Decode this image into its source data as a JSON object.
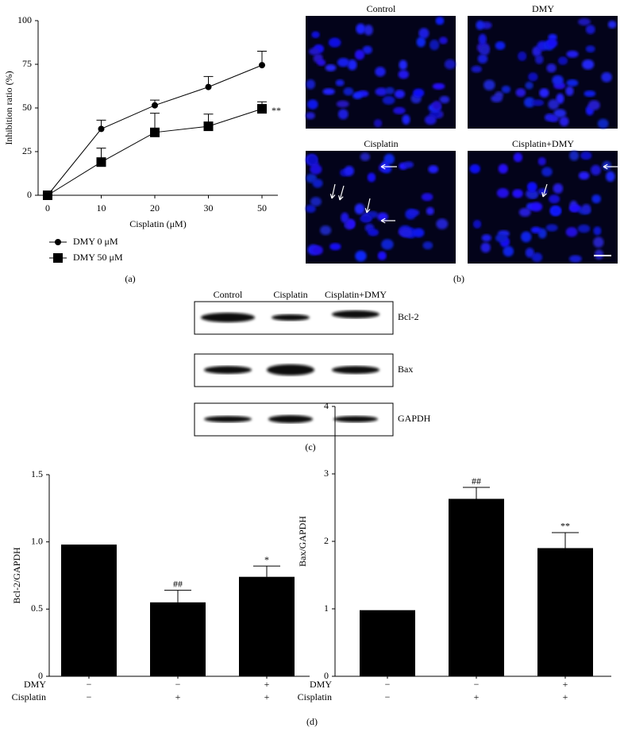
{
  "chart_data": [
    {
      "type": "line",
      "panel_label": "(a)",
      "x_label": "Cisplatin (μM)",
      "y_label": "Inhibition ratio (%)",
      "categories": [
        "0",
        "10",
        "20",
        "30",
        "50"
      ],
      "ylim": [
        0,
        100
      ],
      "yticks": [
        0,
        25,
        50,
        75,
        100
      ],
      "series": [
        {
          "name": "DMY 0 μM",
          "color": "#000000",
          "marker": "circle",
          "values": [
            0,
            38,
            51.5,
            62,
            74.5
          ],
          "errors": [
            null,
            5,
            3,
            6,
            8
          ],
          "value_annotations": [
            null,
            null,
            null,
            null,
            null
          ]
        },
        {
          "name": "DMY 50 μM",
          "color": "#000000",
          "marker": "square",
          "values": [
            0,
            19,
            36,
            39.5,
            49.5
          ],
          "errors": [
            null,
            8,
            11,
            7,
            4
          ],
          "value_annotations": [
            null,
            null,
            null,
            null,
            "**"
          ]
        }
      ]
    },
    {
      "type": "bar",
      "y_label": "Bcl-2/GAPDH",
      "color": "#000000",
      "ylim": [
        0,
        1.5
      ],
      "yticks": [
        0,
        0.5,
        {
          "value": 1,
          "label": "1.0"
        },
        1.5
      ],
      "values": [
        0.98,
        0.55,
        0.74
      ],
      "errors": [
        null,
        0.09,
        0.08
      ],
      "value_annotations": [
        null,
        "##",
        "*"
      ],
      "conditions": [
        {
          "name": "DMY",
          "marks": [
            "−",
            "−",
            "+"
          ]
        },
        {
          "name": "Cisplatin",
          "marks": [
            "−",
            "+",
            "+"
          ]
        }
      ]
    },
    {
      "type": "bar",
      "y_label": "Bax/GAPDH",
      "color": "#000000",
      "ylim": [
        0,
        4
      ],
      "yticks": [
        0,
        1,
        2,
        3,
        4
      ],
      "values": [
        0.98,
        2.63,
        1.9
      ],
      "errors": [
        null,
        0.17,
        0.23
      ],
      "value_annotations": [
        null,
        "##",
        "**"
      ],
      "conditions": [
        {
          "name": "DMY",
          "marks": [
            "−",
            "−",
            "+"
          ]
        },
        {
          "name": "Cisplatin",
          "marks": [
            "−",
            "+",
            "+"
          ]
        }
      ]
    }
  ],
  "panel_b": {
    "label": "(b)",
    "images": [
      "Control",
      "DMY",
      "Cisplatin",
      "Cisplatin+DMY"
    ]
  },
  "panel_c": {
    "label": "(c)",
    "columns": [
      "Control",
      "Cisplatin",
      "Cisplatin+DMY"
    ],
    "rows": [
      "Bcl-2",
      "Bax",
      "GAPDH"
    ]
  },
  "panel_d": {
    "label": "(d)"
  }
}
